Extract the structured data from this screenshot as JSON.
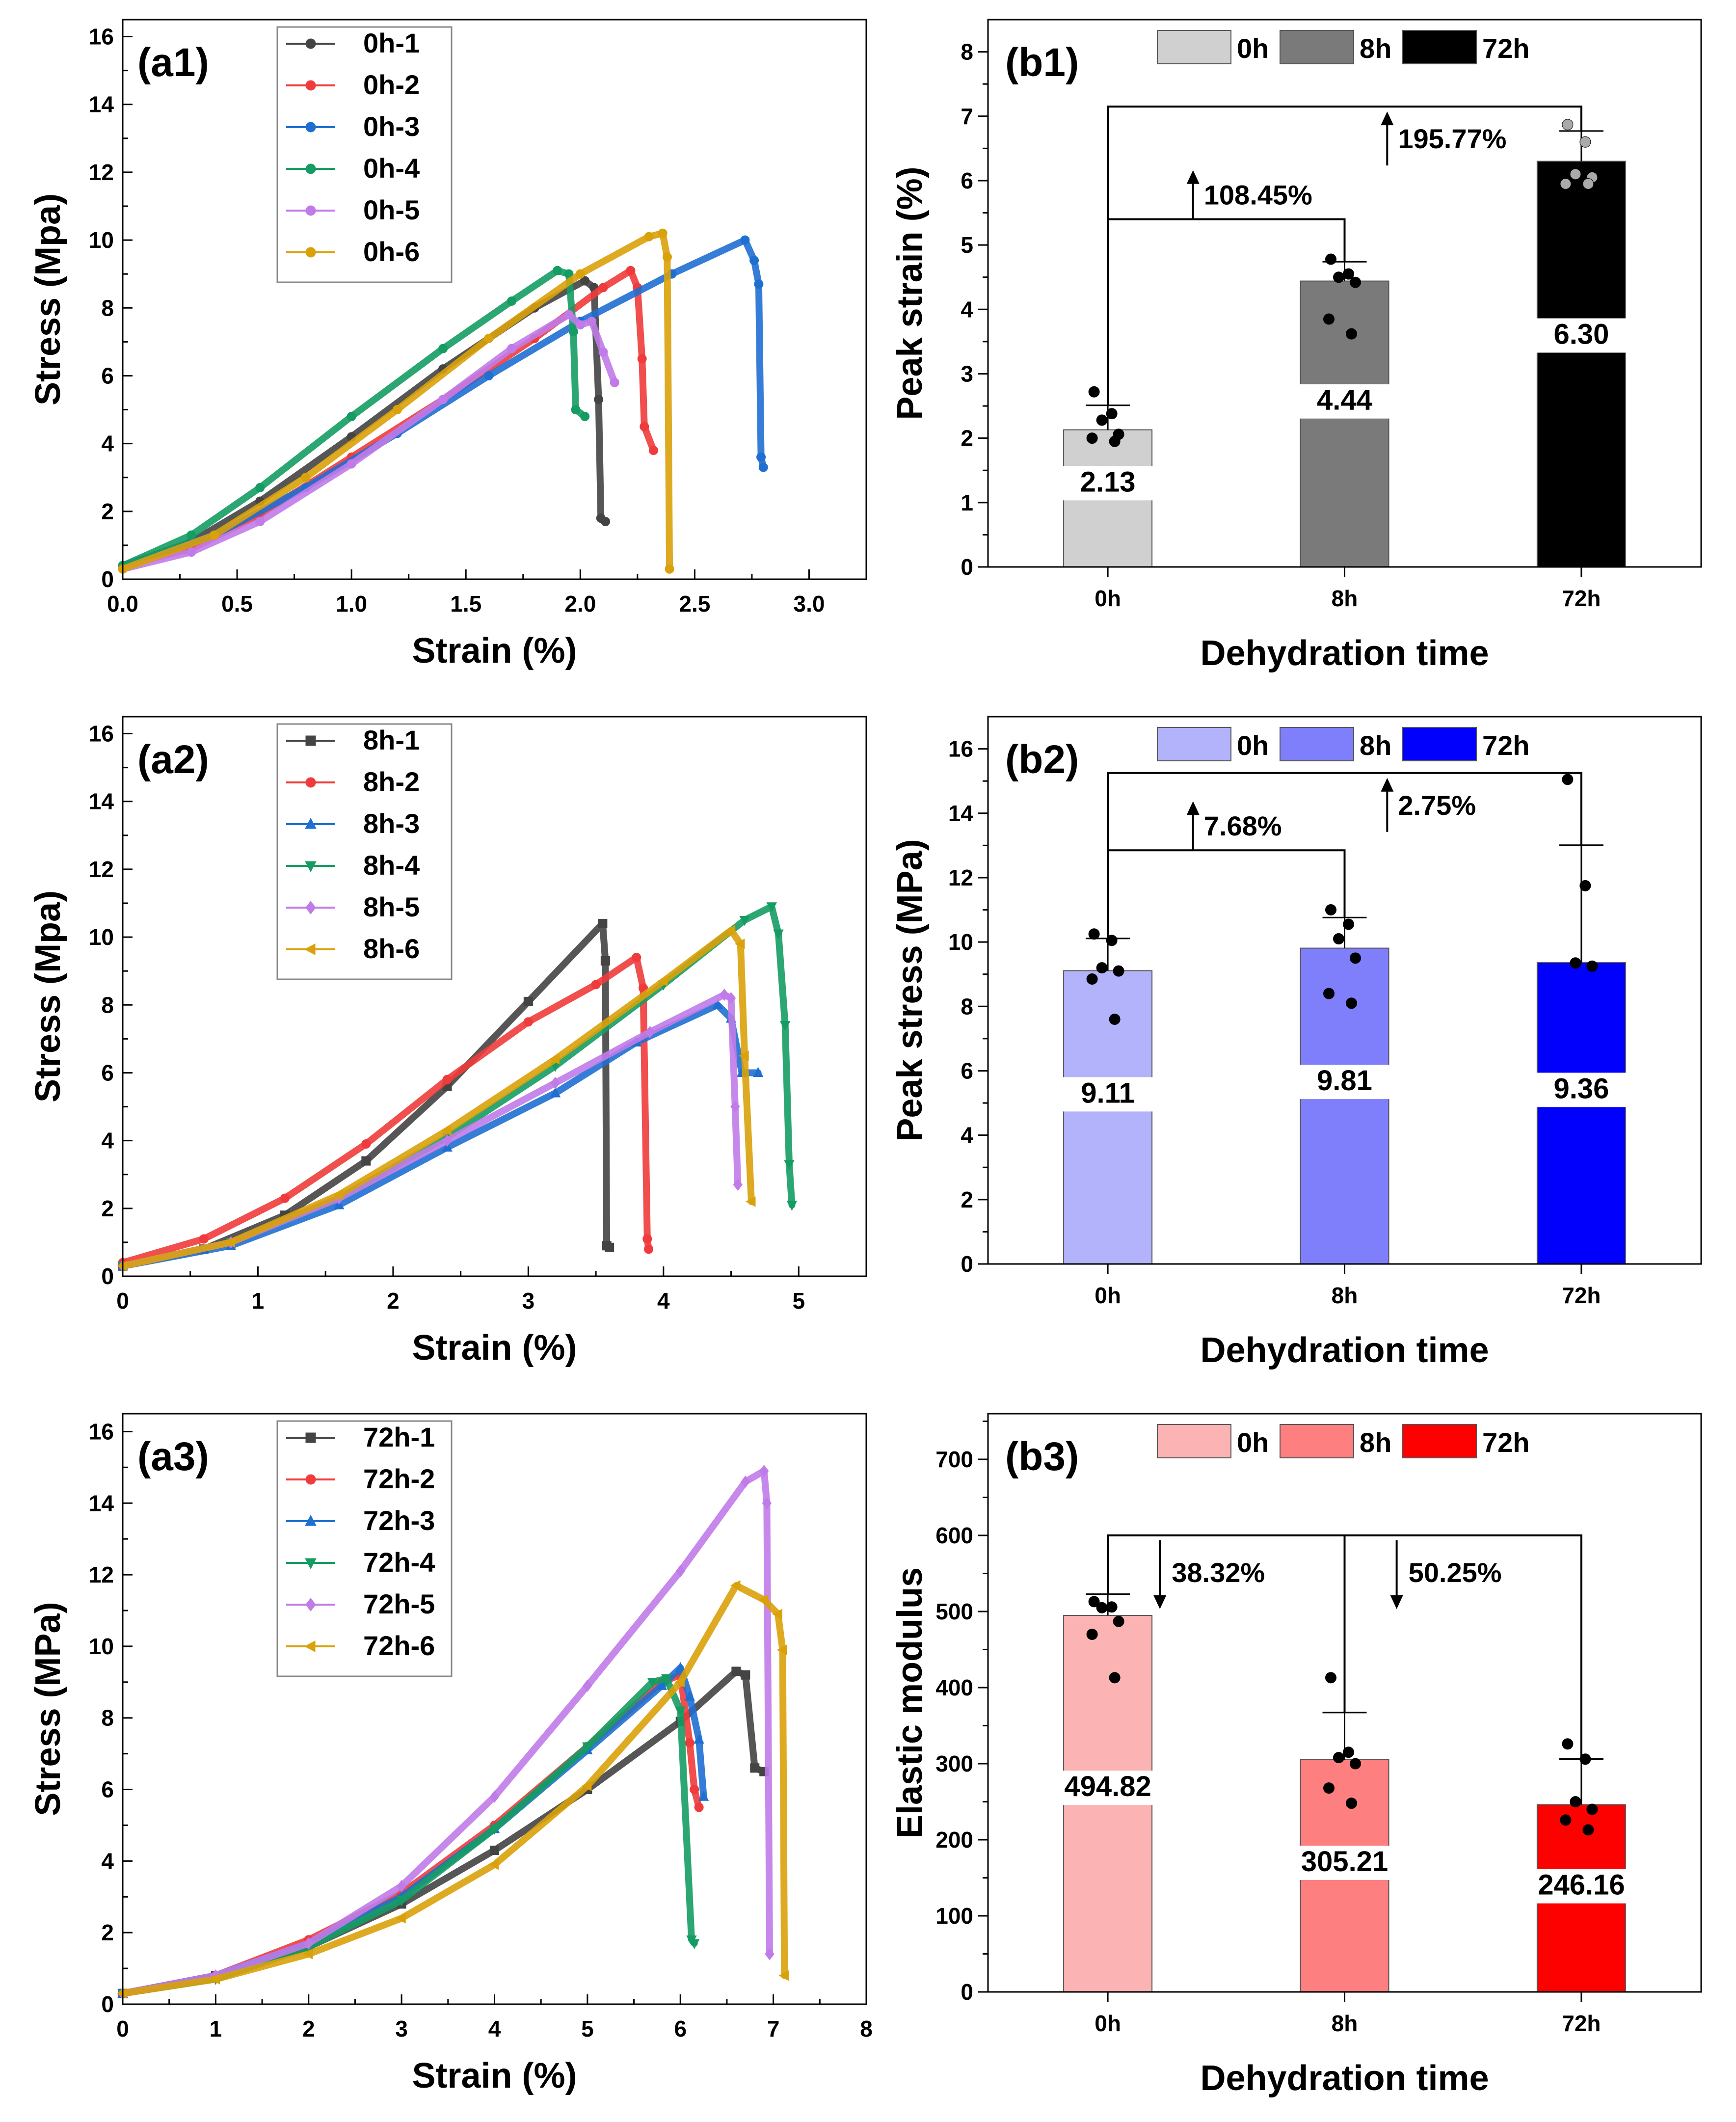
{
  "chart_data": [
    {
      "id": "a1",
      "type": "line",
      "panel_label": "(a1)",
      "xlabel": "Strain (%)",
      "ylabel": "Stress (Mpa)",
      "xlim": [
        0,
        3.25
      ],
      "ylim": [
        0,
        16.5
      ],
      "xticks": [
        0,
        0.5,
        1.0,
        1.5,
        2.0,
        2.5,
        3.0
      ],
      "xtick_labels": [
        "0.0",
        "0.5",
        "1.0",
        "1.5",
        "2.0",
        "2.5",
        "3.0"
      ],
      "yticks": [
        0,
        2,
        4,
        6,
        8,
        10,
        12,
        14,
        16
      ],
      "legend_position": "top-left",
      "series": [
        {
          "name": "0h-1",
          "color": "#444444",
          "marker": "circle",
          "x": [
            0,
            0.3,
            0.6,
            1.0,
            1.4,
            1.8,
            2.02,
            2.06,
            2.08,
            2.09,
            2.11
          ],
          "y": [
            0.4,
            1.1,
            2.3,
            4.2,
            6.2,
            8.0,
            8.8,
            8.6,
            5.3,
            1.8,
            1.7
          ]
        },
        {
          "name": "0h-2",
          "color": "#ef3b3b",
          "marker": "circle",
          "x": [
            0,
            0.3,
            0.6,
            1.0,
            1.4,
            1.8,
            2.1,
            2.22,
            2.25,
            2.27,
            2.28,
            2.32
          ],
          "y": [
            0.4,
            0.9,
            1.9,
            3.6,
            5.3,
            7.1,
            8.6,
            9.1,
            8.6,
            6.5,
            4.5,
            3.8
          ]
        },
        {
          "name": "0h-3",
          "color": "#1f6fd1",
          "marker": "circle",
          "x": [
            0,
            0.4,
            0.8,
            1.2,
            1.6,
            2.0,
            2.4,
            2.72,
            2.76,
            2.78,
            2.79,
            2.8
          ],
          "y": [
            0.4,
            1.3,
            2.7,
            4.3,
            6.0,
            7.6,
            9.0,
            10.0,
            9.4,
            8.7,
            3.6,
            3.3
          ]
        },
        {
          "name": "0h-4",
          "color": "#159c63",
          "marker": "circle",
          "x": [
            0,
            0.3,
            0.6,
            1.0,
            1.4,
            1.7,
            1.9,
            1.95,
            1.97,
            1.98,
            2.02
          ],
          "y": [
            0.4,
            1.3,
            2.7,
            4.8,
            6.8,
            8.2,
            9.1,
            9.0,
            7.3,
            5.0,
            4.8
          ]
        },
        {
          "name": "0h-5",
          "color": "#c07be8",
          "marker": "circle",
          "x": [
            0,
            0.3,
            0.6,
            1.0,
            1.4,
            1.7,
            1.95,
            2.0,
            2.05,
            2.1,
            2.15
          ],
          "y": [
            0.3,
            0.8,
            1.7,
            3.4,
            5.3,
            6.8,
            7.8,
            7.5,
            7.6,
            6.7,
            5.8
          ]
        },
        {
          "name": "0h-6",
          "color": "#d9a10a",
          "marker": "circle",
          "x": [
            0,
            0.4,
            0.8,
            1.2,
            1.6,
            2.0,
            2.3,
            2.36,
            2.38,
            2.39
          ],
          "y": [
            0.3,
            1.3,
            3.0,
            5.0,
            7.1,
            9.0,
            10.1,
            10.2,
            9.5,
            0.3
          ]
        }
      ]
    },
    {
      "id": "b1",
      "type": "bar",
      "panel_label": "(b1)",
      "xlabel": "Dehydration time",
      "ylabel": "Peak strain (%)",
      "categories": [
        "0h",
        "8h",
        "72h"
      ],
      "values": [
        2.13,
        4.44,
        6.3
      ],
      "value_labels": [
        "2.13",
        "4.44",
        "6.30"
      ],
      "errors": [
        0.38,
        0.3,
        0.47
      ],
      "points": [
        [
          2.72,
          2.38,
          2.28,
          2.06,
          2.0,
          1.95
        ],
        [
          4.78,
          4.55,
          4.5,
          4.42,
          3.85,
          3.62
        ],
        [
          6.87,
          6.6,
          6.1,
          6.05,
          5.95,
          5.95
        ]
      ],
      "point_colors": [
        "#000000",
        "#000000",
        "#aaaaaa"
      ],
      "colors": [
        "#d0d0d0",
        "#7a7a7a",
        "#000000"
      ],
      "ylim": [
        0,
        8.5
      ],
      "yticks": [
        0,
        1,
        2,
        3,
        4,
        5,
        6,
        7,
        8
      ],
      "legend_position": "top",
      "annotations": [
        {
          "text": "108.45%",
          "from": 0,
          "to": 1,
          "bracket_y": 5.4,
          "direction": "up"
        },
        {
          "text": "195.77%",
          "from": 0,
          "to": 2,
          "bracket_y": 7.15,
          "direction": "up"
        }
      ]
    },
    {
      "id": "a2",
      "type": "line",
      "panel_label": "(a2)",
      "xlabel": "Strain (%)",
      "ylabel": "Stress (Mpa)",
      "xlim": [
        0,
        5.5
      ],
      "ylim": [
        0,
        16.5
      ],
      "xticks": [
        0,
        1,
        2,
        3,
        4,
        5
      ],
      "xtick_labels": [
        "0",
        "1",
        "2",
        "3",
        "4",
        "5"
      ],
      "yticks": [
        0,
        2,
        4,
        6,
        8,
        10,
        12,
        14,
        16
      ],
      "legend_position": "top-left",
      "series": [
        {
          "name": "8h-1",
          "color": "#444444",
          "marker": "square",
          "x": [
            0,
            0.6,
            1.2,
            1.8,
            2.4,
            3.0,
            3.55,
            3.57,
            3.58,
            3.6
          ],
          "y": [
            0.3,
            0.8,
            1.8,
            3.4,
            5.6,
            8.1,
            10.4,
            9.3,
            0.9,
            0.85
          ]
        },
        {
          "name": "8h-2",
          "color": "#ef3b3b",
          "marker": "circle",
          "x": [
            0,
            0.6,
            1.2,
            1.8,
            2.4,
            3.0,
            3.5,
            3.8,
            3.85,
            3.88,
            3.89
          ],
          "y": [
            0.4,
            1.1,
            2.3,
            3.9,
            5.8,
            7.5,
            8.6,
            9.4,
            8.5,
            1.1,
            0.8
          ]
        },
        {
          "name": "8h-3",
          "color": "#1f6fd1",
          "marker": "triangle",
          "x": [
            0,
            0.8,
            1.6,
            2.4,
            3.2,
            3.8,
            4.4,
            4.5,
            4.58,
            4.7
          ],
          "y": [
            0.3,
            0.9,
            2.1,
            3.8,
            5.4,
            6.9,
            8.0,
            7.6,
            6.0,
            6.0
          ]
        },
        {
          "name": "8h-4",
          "color": "#159c63",
          "marker": "triangle-down",
          "x": [
            0,
            0.8,
            1.6,
            2.4,
            3.2,
            4.0,
            4.6,
            4.8,
            4.85,
            4.9,
            4.93,
            4.95
          ],
          "y": [
            0.3,
            1.0,
            2.3,
            4.1,
            6.2,
            8.6,
            10.5,
            10.9,
            10.1,
            7.4,
            3.3,
            2.1
          ]
        },
        {
          "name": "8h-5",
          "color": "#c07be8",
          "marker": "diamond",
          "x": [
            0,
            0.8,
            1.6,
            2.4,
            3.2,
            3.9,
            4.45,
            4.5,
            4.53,
            4.55
          ],
          "y": [
            0.3,
            1.0,
            2.3,
            4.0,
            5.7,
            7.2,
            8.3,
            8.2,
            5.0,
            2.7
          ]
        },
        {
          "name": "8h-6",
          "color": "#d9a10a",
          "marker": "triangle-left",
          "x": [
            0,
            0.8,
            1.6,
            2.4,
            3.2,
            4.0,
            4.5,
            4.57,
            4.6,
            4.65
          ],
          "y": [
            0.3,
            1.0,
            2.4,
            4.3,
            6.4,
            8.7,
            10.2,
            9.8,
            6.5,
            2.2
          ]
        }
      ]
    },
    {
      "id": "b2",
      "type": "bar",
      "panel_label": "(b2)",
      "xlabel": "Dehydration time",
      "ylabel": "Peak stress (MPa)",
      "categories": [
        "0h",
        "8h",
        "72h"
      ],
      "values": [
        9.11,
        9.81,
        9.36
      ],
      "value_labels": [
        "9.11",
        "9.81",
        "9.36"
      ],
      "errors": [
        1.0,
        0.95,
        3.65
      ],
      "points": [
        [
          10.25,
          10.05,
          9.2,
          9.1,
          8.85,
          7.6
        ],
        [
          11.0,
          10.55,
          10.1,
          9.5,
          8.4,
          8.1
        ],
        [
          15.05,
          11.75,
          9.35,
          9.25
        ]
      ],
      "point_colors": [
        "#000000",
        "#000000",
        "#000000"
      ],
      "colors": [
        "#b3b3fb",
        "#7f7ffc",
        "#0000fc"
      ],
      "ylim": [
        0,
        17
      ],
      "yticks": [
        0,
        2,
        4,
        6,
        8,
        10,
        12,
        14,
        16
      ],
      "legend_position": "top",
      "annotations": [
        {
          "text": "7.68%",
          "from": 0,
          "to": 1,
          "bracket_y": 12.85,
          "direction": "up"
        },
        {
          "text": "2.75%",
          "from": 0,
          "to": 2,
          "bracket_y": 15.25,
          "direction": "up"
        }
      ]
    },
    {
      "id": "a3",
      "type": "line",
      "panel_label": "(a3)",
      "xlabel": "Strain (%)",
      "ylabel": "Stress (MPa)",
      "xlim": [
        0,
        8
      ],
      "ylim": [
        0,
        16.5
      ],
      "xticks": [
        0,
        1,
        2,
        3,
        4,
        5,
        6,
        7,
        8
      ],
      "xtick_labels": [
        "0",
        "1",
        "2",
        "3",
        "4",
        "5",
        "6",
        "7",
        "8"
      ],
      "yticks": [
        0,
        2,
        4,
        6,
        8,
        10,
        12,
        14,
        16
      ],
      "legend_position": "top-left",
      "series": [
        {
          "name": "72h-1",
          "color": "#444444",
          "marker": "square",
          "x": [
            0,
            1,
            2,
            3,
            4,
            5,
            6,
            6.6,
            6.7,
            6.8,
            6.9
          ],
          "y": [
            0.3,
            0.8,
            1.6,
            2.8,
            4.3,
            6.0,
            7.9,
            9.3,
            9.2,
            6.6,
            6.5
          ]
        },
        {
          "name": "72h-2",
          "color": "#ef3b3b",
          "marker": "circle",
          "x": [
            0,
            1,
            2,
            3,
            4,
            5,
            5.8,
            6.0,
            6.1,
            6.15,
            6.2
          ],
          "y": [
            0.3,
            0.8,
            1.8,
            3.1,
            5.0,
            7.2,
            9.0,
            9.2,
            7.3,
            6.0,
            5.5
          ]
        },
        {
          "name": "72h-3",
          "color": "#1f6fd1",
          "marker": "triangle",
          "x": [
            0,
            1,
            2,
            3,
            4,
            5,
            5.8,
            6.0,
            6.1,
            6.2,
            6.25
          ],
          "y": [
            0.3,
            0.8,
            1.7,
            3.0,
            4.9,
            7.1,
            8.9,
            9.4,
            8.6,
            7.4,
            5.8
          ]
        },
        {
          "name": "72h-4",
          "color": "#159c63",
          "marker": "triangle-down",
          "x": [
            0,
            1,
            2,
            3,
            4,
            5,
            5.7,
            5.85,
            6.0,
            6.12,
            6.15
          ],
          "y": [
            0.3,
            0.7,
            1.6,
            2.9,
            4.9,
            7.2,
            9.0,
            9.1,
            8.2,
            1.8,
            1.7
          ]
        },
        {
          "name": "72h-5",
          "color": "#c07be8",
          "marker": "diamond",
          "x": [
            0,
            1,
            2,
            3,
            4,
            5,
            6,
            6.7,
            6.9,
            6.93,
            6.96
          ],
          "y": [
            0.3,
            0.8,
            1.7,
            3.3,
            5.8,
            8.9,
            12.1,
            14.6,
            14.9,
            14.0,
            1.4
          ]
        },
        {
          "name": "72h-6",
          "color": "#d9a10a",
          "marker": "triangle-left",
          "x": [
            0,
            1,
            2,
            3,
            4,
            5,
            6,
            6.6,
            6.9,
            7.05,
            7.1,
            7.12
          ],
          "y": [
            0.3,
            0.7,
            1.4,
            2.4,
            3.9,
            6.1,
            9.0,
            11.7,
            11.3,
            10.9,
            9.9,
            0.8
          ]
        }
      ]
    },
    {
      "id": "b3",
      "type": "bar",
      "panel_label": "(b3)",
      "xlabel": "Dehydration time",
      "ylabel": "Elastic modulus",
      "categories": [
        "0h",
        "8h",
        "72h"
      ],
      "values": [
        494.82,
        305.21,
        246.16
      ],
      "value_labels": [
        "494.82",
        "305.21",
        "246.16"
      ],
      "errors": [
        28,
        62,
        60
      ],
      "points": [
        [
          513,
          506,
          505,
          487,
          470,
          413
        ],
        [
          413,
          315,
          308,
          300,
          268,
          248
        ],
        [
          326,
          306,
          250,
          240,
          226,
          213
        ]
      ],
      "point_colors": [
        "#000000",
        "#000000",
        "#000000"
      ],
      "colors": [
        "#fcb3b3",
        "#fd7f7f",
        "#fd0000"
      ],
      "ylim": [
        0,
        760
      ],
      "yticks": [
        0,
        100,
        200,
        300,
        400,
        500,
        600,
        700
      ],
      "legend_position": "top",
      "annotations": [
        {
          "text": "38.32%",
          "from": 0,
          "to": 1,
          "bracket_y": 600,
          "direction": "down"
        },
        {
          "text": "50.25%",
          "from": 0,
          "to": 2,
          "bracket_y": 600,
          "direction": "down"
        }
      ]
    }
  ]
}
